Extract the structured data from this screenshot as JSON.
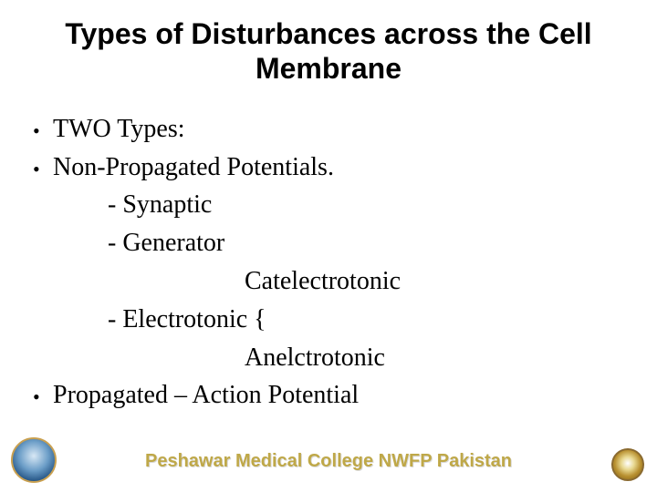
{
  "title": {
    "text": "Types of Disturbances  across the Cell Membrane",
    "fontsize": 32,
    "color": "#000000"
  },
  "body": {
    "fontsize": 28,
    "color": "#000000",
    "lines": [
      {
        "bullet": true,
        "indent": 0,
        "text": "TWO Types:"
      },
      {
        "bullet": true,
        "indent": 0,
        "text": "Non-Propagated Potentials."
      },
      {
        "bullet": false,
        "indent": 1,
        "text": " - Synaptic"
      },
      {
        "bullet": false,
        "indent": 1,
        "text": "- Generator"
      },
      {
        "bullet": false,
        "indent": 2,
        "text": "Catelectrotonic"
      },
      {
        "bullet": false,
        "indent": 1,
        "text": "- Electrotonic {"
      },
      {
        "bullet": false,
        "indent": 2,
        "text": "Anelctrotonic"
      },
      {
        "bullet": true,
        "indent": 0,
        "text": "Propagated  – Action Potential"
      }
    ]
  },
  "footer": {
    "text": "Peshawar Medical College NWFP Pakistan",
    "fontsize": 20,
    "color": "#bfa848",
    "shadow_color": "#d8d8d8"
  },
  "background_color": "#ffffff"
}
